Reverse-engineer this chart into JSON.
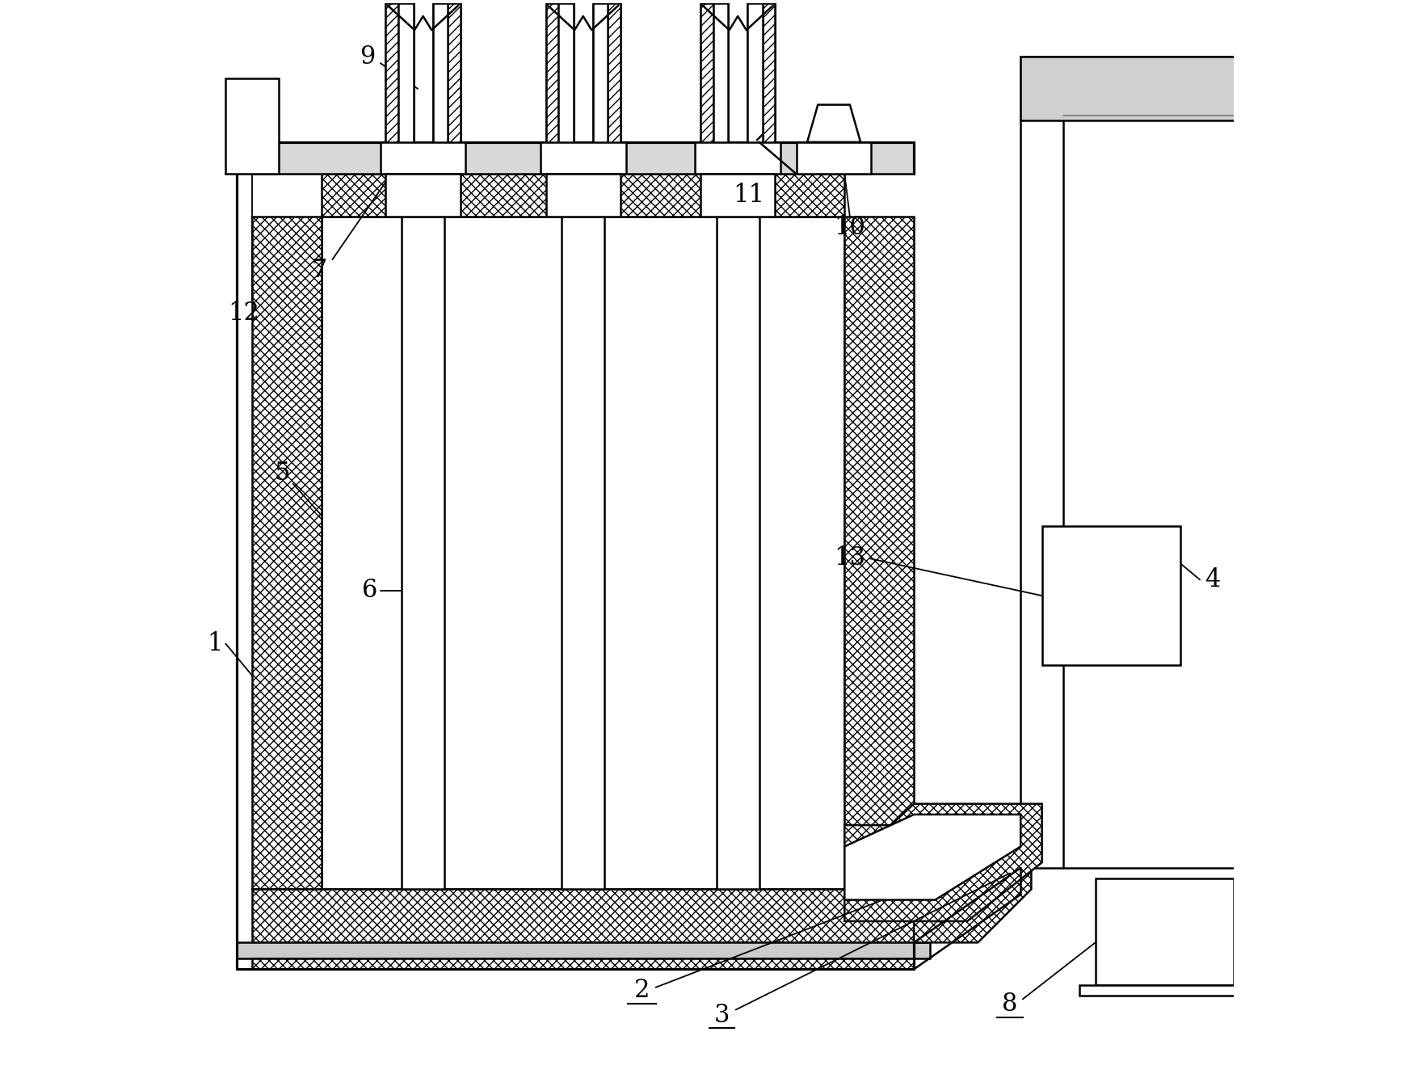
{
  "bg_color": "#ffffff",
  "lc": "#000000",
  "lw": 1.8,
  "figsize": [
    17.34,
    13.29
  ],
  "dpi": 100
}
